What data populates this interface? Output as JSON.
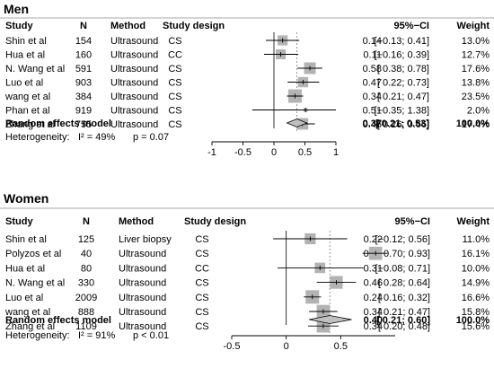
{
  "chart_data": [
    {
      "type": "forest",
      "panel_title": "Men",
      "columns": [
        "Study",
        "N",
        "Method",
        "Study design",
        "95%−CI",
        "Weight"
      ],
      "studies": [
        {
          "study": "Shin et al",
          "n": "154",
          "method": "Ultrasound",
          "design": "CS",
          "est": 0.14,
          "lo": -0.13,
          "hi": 0.41,
          "est_txt": "0.14",
          "ci_txt": "[−0.13; 0.41]",
          "weight": 13.0,
          "weight_txt": "13.0%"
        },
        {
          "study": "Hua et al",
          "n": "160",
          "method": "Ultrasound",
          "design": "CC",
          "est": 0.11,
          "lo": -0.16,
          "hi": 0.39,
          "est_txt": "0.11",
          "ci_txt": "[−0.16; 0.39]",
          "weight": 12.7,
          "weight_txt": "12.7%"
        },
        {
          "study": "N. Wang et al",
          "n": "591",
          "method": "Ultrasound",
          "design": "CS",
          "est": 0.58,
          "lo": 0.38,
          "hi": 0.78,
          "est_txt": "0.58",
          "ci_txt": "[ 0.38; 0.78]",
          "weight": 17.6,
          "weight_txt": "17.6%"
        },
        {
          "study": "Luo et al",
          "n": "903",
          "method": "Ultrasound",
          "design": "CS",
          "est": 0.47,
          "lo": 0.22,
          "hi": 0.73,
          "est_txt": "0.47",
          "ci_txt": "[ 0.22; 0.73]",
          "weight": 13.8,
          "weight_txt": "13.8%"
        },
        {
          "study": "wang et al",
          "n": "384",
          "method": "Ultrasound",
          "design": "CS",
          "est": 0.34,
          "lo": 0.21,
          "hi": 0.47,
          "est_txt": "0.34",
          "ci_txt": "[ 0.21; 0.47]",
          "weight": 23.5,
          "weight_txt": "23.5%"
        },
        {
          "study": "Phan et al",
          "n": "919",
          "method": "Ultrasound",
          "design": "CS",
          "est": 0.51,
          "lo": -0.35,
          "hi": 1.38,
          "est_txt": "0.51",
          "ci_txt": "[−0.35; 1.38]",
          "weight": 2.0,
          "weight_txt": "2.0%"
        },
        {
          "study": "Zhang et al",
          "n": "755",
          "method": "Ultrasound",
          "design": "CS",
          "est": 0.46,
          "lo": 0.26,
          "hi": 0.66,
          "est_txt": "0.46",
          "ci_txt": "[ 0.26; 0.66]",
          "weight": 17.4,
          "weight_txt": "17.4%"
        }
      ],
      "pooled": {
        "label": "Random effects model",
        "est": 0.37,
        "lo": 0.21,
        "hi": 0.53,
        "est_txt": "0.37",
        "ci_txt": "[ 0.21; 0.53]",
        "weight_txt": "100.0%"
      },
      "heterogeneity": {
        "label": "Heterogeneity:",
        "i2": "I² = 49%",
        "p": "p = 0.07"
      },
      "xlim": [
        -1,
        1
      ],
      "ticks": [
        -1,
        -0.5,
        0,
        0.5,
        1
      ],
      "tick_labels": [
        "-1",
        "-0.5",
        "0",
        "0.5",
        "1"
      ],
      "null_line": 0
    },
    {
      "type": "forest",
      "panel_title": "Women",
      "columns": [
        "Study",
        "N",
        "Method",
        "Study design",
        "95%−CI",
        "Weight"
      ],
      "studies": [
        {
          "study": "Shin et al",
          "n": "125",
          "method": "Liver biopsy",
          "design": "CS",
          "est": 0.22,
          "lo": -0.12,
          "hi": 0.56,
          "est_txt": "0.22",
          "ci_txt": "[−0.12; 0.56]",
          "weight": 11.0,
          "weight_txt": "11.0%"
        },
        {
          "study": "Polyzos et al",
          "n": "40",
          "method": "Ultrasound",
          "design": "CS",
          "est": 0.82,
          "lo": 0.7,
          "hi": 0.93,
          "est_txt": "0.82",
          "ci_txt": "[ 0.70; 0.93]",
          "weight": 16.1,
          "weight_txt": "16.1%"
        },
        {
          "study": "Hua et al",
          "n": "80",
          "method": "Ultrasound",
          "design": "CC",
          "est": 0.31,
          "lo": -0.08,
          "hi": 0.71,
          "est_txt": "0.31",
          "ci_txt": "[−0.08; 0.71]",
          "weight": 10.0,
          "weight_txt": "10.0%"
        },
        {
          "study": "N. Wang et al",
          "n": "330",
          "method": "Ultrasound",
          "design": "CS",
          "est": 0.46,
          "lo": 0.28,
          "hi": 0.64,
          "est_txt": "0.46",
          "ci_txt": "[ 0.28; 0.64]",
          "weight": 14.9,
          "weight_txt": "14.9%"
        },
        {
          "study": "Luo et al",
          "n": "2009",
          "method": "Ultrasound",
          "design": "CS",
          "est": 0.24,
          "lo": 0.16,
          "hi": 0.32,
          "est_txt": "0.24",
          "ci_txt": "[ 0.16; 0.32]",
          "weight": 16.6,
          "weight_txt": "16.6%"
        },
        {
          "study": "wang et al",
          "n": "888",
          "method": "Ultrasound",
          "design": "CS",
          "est": 0.34,
          "lo": 0.21,
          "hi": 0.47,
          "est_txt": "0.34",
          "ci_txt": "[ 0.21; 0.47]",
          "weight": 15.8,
          "weight_txt": "15.8%"
        },
        {
          "study": "Zhang et al",
          "n": "1109",
          "method": "Ultrasound",
          "design": "CS",
          "est": 0.34,
          "lo": 0.2,
          "hi": 0.48,
          "est_txt": "0.34",
          "ci_txt": "[ 0.20; 0.48]",
          "weight": 15.6,
          "weight_txt": "15.6%"
        }
      ],
      "pooled": {
        "label": "Random effects model",
        "est": 0.4,
        "lo": 0.21,
        "hi": 0.6,
        "est_txt": "0.40",
        "ci_txt": "[ 0.21; 0.60]",
        "weight_txt": "100.0%"
      },
      "heterogeneity": {
        "label": "Heterogeneity:",
        "i2": "I² = 91%",
        "p": "p < 0.01"
      },
      "xlim": [
        -0.5,
        1
      ],
      "ticks": [
        -0.5,
        0,
        0.5
      ],
      "tick_labels": [
        "-0.5",
        "0",
        "0.5"
      ],
      "null_line": 0
    }
  ],
  "colors": {
    "square": "#b3b3b3",
    "diamond": "#c0c0c0",
    "ref_line": "#808080"
  }
}
